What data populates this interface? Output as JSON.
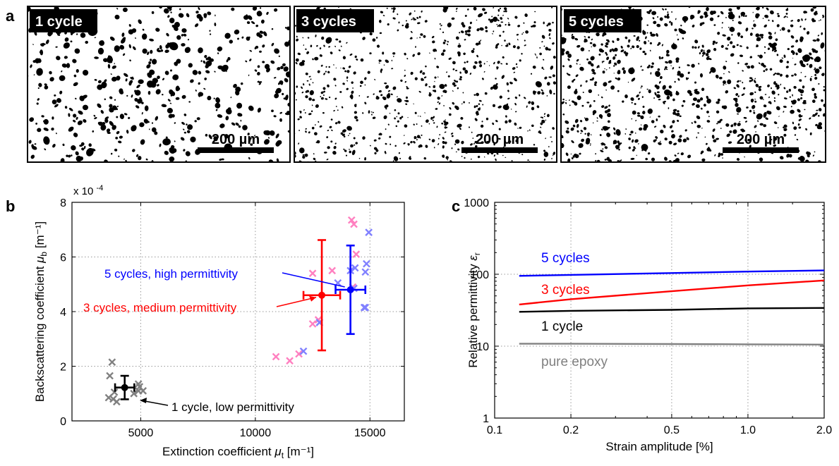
{
  "panel_a": {
    "letter": "a",
    "micrographs": [
      {
        "label": "1 cycle",
        "scale_bar": "200 µm"
      },
      {
        "label": "3 cycles",
        "scale_bar": "200 µm"
      },
      {
        "label": "5 cycles",
        "scale_bar": "200 µm"
      }
    ]
  },
  "chart_data": [
    {
      "type": "scatter",
      "panel": "b",
      "xlabel": "Extinction coefficient μt [m⁻¹]",
      "ylabel": "Backscattering coefficient μb [m⁻¹]",
      "y_multiplier": "x 10",
      "y_multiplier_exp": "-4",
      "xlim": [
        2000,
        16500
      ],
      "ylim": [
        0,
        8
      ],
      "xticks": [
        5000,
        10000,
        15000
      ],
      "yticks": [
        0,
        2,
        4,
        6,
        8
      ],
      "grid": true,
      "colors": {
        "one": "#808080",
        "three": "#ff80c0",
        "five": "#8080ff",
        "one_mean": "#000000",
        "three_mean": "#ff0000",
        "five_mean": "#0000ff"
      },
      "series": [
        {
          "group": "one",
          "points": [
            [
              3750,
              2.15
            ],
            [
              3650,
              1.65
            ],
            [
              3600,
              0.85
            ],
            [
              3800,
              0.8
            ],
            [
              3950,
              0.7
            ],
            [
              3850,
              1.05
            ],
            [
              4700,
              1.0
            ],
            [
              4900,
              1.1
            ],
            [
              4950,
              1.25
            ],
            [
              4900,
              1.35
            ],
            [
              5100,
              1.1
            ]
          ]
        },
        {
          "group": "three",
          "points": [
            [
              10900,
              2.35
            ],
            [
              11500,
              2.2
            ],
            [
              11900,
              2.45
            ],
            [
              12500,
              3.55
            ],
            [
              12750,
              3.7
            ],
            [
              12500,
              5.4
            ],
            [
              13350,
              5.5
            ],
            [
              14200,
              7.35
            ],
            [
              14300,
              7.2
            ],
            [
              14400,
              6.1
            ],
            [
              14250,
              4.9
            ]
          ]
        },
        {
          "group": "five",
          "points": [
            [
              12100,
              2.55
            ],
            [
              12800,
              3.6
            ],
            [
              13600,
              5.05
            ],
            [
              14150,
              5.5
            ],
            [
              14350,
              5.6
            ],
            [
              14750,
              4.15
            ],
            [
              14800,
              4.15
            ],
            [
              14800,
              5.45
            ],
            [
              14850,
              5.75
            ],
            [
              14950,
              6.9
            ],
            [
              14300,
              4.85
            ]
          ]
        }
      ],
      "means": [
        {
          "group": "one_mean",
          "x": 4300,
          "y": 1.22,
          "xerr": 420,
          "yerr": 0.43
        },
        {
          "group": "three_mean",
          "x": 12900,
          "y": 4.6,
          "xerr": 800,
          "yerr": 2.02
        },
        {
          "group": "five_mean",
          "x": 14150,
          "y": 4.8,
          "xerr": 650,
          "yerr": 1.62
        }
      ],
      "annotations": [
        {
          "text": "5 cycles, high permittivity",
          "color": "#0000ff"
        },
        {
          "text": "3 cycles, medium permittivity",
          "color": "#ff0000"
        },
        {
          "text": "1 cycle, low permittivity",
          "color": "#000000"
        }
      ]
    },
    {
      "type": "line",
      "panel": "c",
      "xlabel": "Strain amplitude [%]",
      "ylabel": "Relative permittivity εr",
      "xscale": "log",
      "yscale": "log",
      "xlim": [
        0.1,
        2.0
      ],
      "ylim": [
        1,
        1000
      ],
      "xticks": [
        0.1,
        0.2,
        0.5,
        1.0,
        2.0
      ],
      "xticklabels": [
        "0.1",
        "0.2",
        "0.5",
        "1.0",
        "2.0"
      ],
      "yticks": [
        1,
        10,
        100,
        1000
      ],
      "yticklabels": [
        "1",
        "10",
        "100",
        "1000"
      ],
      "grid": true,
      "series": [
        {
          "name": "5 cycles",
          "color": "#0000ff",
          "x": [
            0.125,
            0.2,
            0.5,
            1.0,
            2.0
          ],
          "y": [
            95,
            98,
            104,
            109,
            113
          ]
        },
        {
          "name": "3 cycles",
          "color": "#ff0000",
          "x": [
            0.125,
            0.2,
            0.5,
            1.0,
            2.0
          ],
          "y": [
            38,
            45,
            58,
            70,
            82
          ]
        },
        {
          "name": "1 cycle",
          "color": "#000000",
          "x": [
            0.125,
            0.2,
            0.5,
            1.0,
            2.0
          ],
          "y": [
            30,
            31,
            32,
            33.5,
            34
          ]
        },
        {
          "name": "pure epoxy",
          "color": "#808080",
          "x": [
            0.125,
            0.2,
            0.5,
            1.0,
            2.0
          ],
          "y": [
            10.8,
            10.8,
            10.7,
            10.6,
            10.5
          ]
        }
      ]
    }
  ]
}
